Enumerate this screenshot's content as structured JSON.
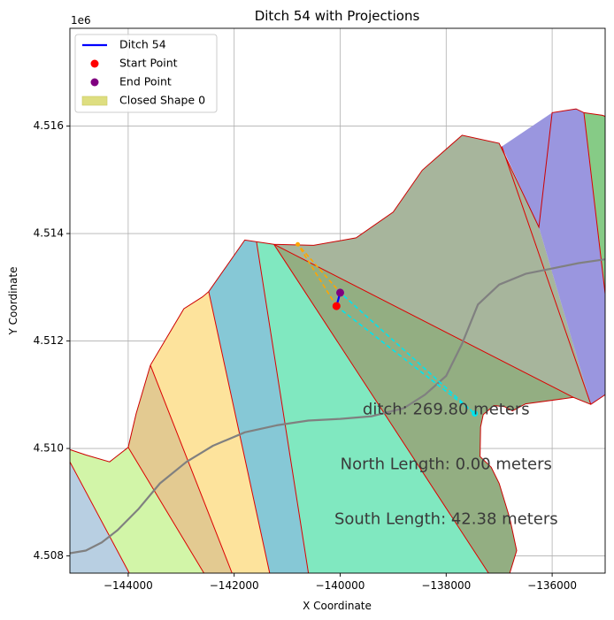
{
  "chart_data": {
    "type": "map-plot",
    "title": "Ditch 54 with Projections",
    "xlabel": "X Coordinate",
    "ylabel": "Y Coordinate",
    "y_offset_label": "1e6",
    "xlim": [
      -145100,
      -135000
    ],
    "ylim": [
      4.50768,
      4.51782
    ],
    "xticks": [
      -144000,
      -142000,
      -140000,
      -138000,
      -136000
    ],
    "xtick_labels": [
      "−144000",
      "−142000",
      "−140000",
      "−138000",
      "−136000"
    ],
    "yticks": [
      4.508,
      4.51,
      4.512,
      4.514,
      4.516
    ],
    "ytick_labels": [
      "4.508",
      "4.510",
      "4.512",
      "4.514",
      "4.516"
    ],
    "grid": true,
    "legend": {
      "placement": "top-left",
      "entries": [
        {
          "label": "Ditch 54",
          "kind": "line",
          "color": "#0000ff"
        },
        {
          "label": "Start Point",
          "kind": "dot",
          "color": "#ff0000"
        },
        {
          "label": "End Point",
          "kind": "dot",
          "color": "#800080"
        },
        {
          "label": "Closed Shape 0",
          "kind": "patch",
          "color": "#dede80"
        }
      ]
    },
    "regions": [
      {
        "name": "region-steelblue",
        "color": "#b8cfe2",
        "points": [
          [
            -145100,
            4.50975
          ],
          [
            -143980,
            4.50768
          ],
          [
            -145100,
            4.50768
          ]
        ]
      },
      {
        "name": "region-lightgreen",
        "color": "#d2f5a8",
        "points": [
          [
            -145100,
            4.50998
          ],
          [
            -144800,
            4.50988
          ],
          [
            -144350,
            4.50975
          ],
          [
            -144000,
            4.51002
          ],
          [
            -142570,
            4.50768
          ],
          [
            -143980,
            4.50768
          ],
          [
            -145100,
            4.50975
          ]
        ]
      },
      {
        "name": "region-tan",
        "color": "#e3ca91",
        "points": [
          [
            -143580,
            4.51155
          ],
          [
            -142040,
            4.50768
          ],
          [
            -142570,
            4.50768
          ],
          [
            -144000,
            4.51002
          ],
          [
            -143850,
            4.51065
          ]
        ]
      },
      {
        "name": "region-gold",
        "color": "#fde39c",
        "points": [
          [
            -142480,
            4.51292
          ],
          [
            -141330,
            4.50768
          ],
          [
            -142040,
            4.50768
          ],
          [
            -143580,
            4.51155
          ],
          [
            -142950,
            4.5126
          ],
          [
            -142600,
            4.51282
          ]
        ]
      },
      {
        "name": "region-teal",
        "color": "#86c8d6",
        "points": [
          [
            -141800,
            4.51388
          ],
          [
            -141580,
            4.51385
          ],
          [
            -140600,
            4.50768
          ],
          [
            -141330,
            4.50768
          ],
          [
            -142480,
            4.51292
          ]
        ]
      },
      {
        "name": "region-aquamarine",
        "color": "#80e8c0",
        "points": [
          [
            -141580,
            4.51385
          ],
          [
            -141250,
            4.5138
          ],
          [
            -137200,
            4.50768
          ],
          [
            -140600,
            4.50768
          ]
        ]
      },
      {
        "name": "region-olivegreen",
        "color": "#93ae82",
        "points": [
          [
            -141250,
            4.5138
          ],
          [
            -135600,
            4.51095
          ],
          [
            -136500,
            4.51083
          ],
          [
            -136750,
            4.5107
          ],
          [
            -136900,
            4.51078
          ],
          [
            -137100,
            4.5108
          ],
          [
            -137300,
            4.51063
          ],
          [
            -137350,
            4.5104
          ],
          [
            -137360,
            4.50985
          ],
          [
            -137150,
            4.50965
          ],
          [
            -137000,
            4.50935
          ],
          [
            -136800,
            4.5087
          ],
          [
            -136670,
            4.5081
          ],
          [
            -136800,
            4.50768
          ],
          [
            -137200,
            4.50768
          ]
        ]
      },
      {
        "name": "region-sage",
        "color": "#a7b59c",
        "points": [
          [
            -141250,
            4.5138
          ],
          [
            -140500,
            4.51378
          ],
          [
            -139700,
            4.51392
          ],
          [
            -139000,
            4.5144
          ],
          [
            -138450,
            4.51518
          ],
          [
            -137700,
            4.51583
          ],
          [
            -137000,
            4.51568
          ],
          [
            -136250,
            4.51412
          ],
          [
            -135270,
            4.51082
          ],
          [
            -135600,
            4.51095
          ]
        ]
      },
      {
        "name": "region-purple",
        "color": "#9a96df",
        "points": [
          [
            -136950,
            4.51562
          ],
          [
            -136000,
            4.51625
          ],
          [
            -135550,
            4.51632
          ],
          [
            -135400,
            4.51625
          ],
          [
            -135000,
            4.51288
          ],
          [
            -135000,
            4.511
          ],
          [
            -135270,
            4.51082
          ],
          [
            -136250,
            4.51412
          ]
        ]
      },
      {
        "name": "region-green",
        "color": "#86cb86",
        "points": [
          [
            -135400,
            4.51625
          ],
          [
            -135050,
            4.5162
          ],
          [
            -135000,
            4.51618
          ],
          [
            -135000,
            4.51288
          ]
        ]
      }
    ],
    "outline": [
      [
        -145100,
        4.50998
      ],
      [
        -144800,
        4.50988
      ],
      [
        -144350,
        4.50975
      ],
      [
        -144000,
        4.51002
      ],
      [
        -143850,
        4.51065
      ],
      [
        -143580,
        4.51155
      ],
      [
        -142950,
        4.5126
      ],
      [
        -142600,
        4.51282
      ],
      [
        -142480,
        4.51292
      ],
      [
        -141800,
        4.51388
      ],
      [
        -141250,
        4.5138
      ],
      [
        -140500,
        4.51378
      ],
      [
        -139700,
        4.51392
      ],
      [
        -139000,
        4.5144
      ],
      [
        -138450,
        4.51518
      ],
      [
        -137700,
        4.51583
      ],
      [
        -137000,
        4.51568
      ],
      [
        -136250,
        4.51412
      ],
      [
        -136000,
        4.51625
      ],
      [
        -135550,
        4.51632
      ],
      [
        -135400,
        4.51625
      ],
      [
        -135050,
        4.5162
      ],
      [
        -135000,
        4.51618
      ]
    ],
    "inner_boundary": [
      [
        -135000,
        4.511
      ],
      [
        -135270,
        4.51082
      ],
      [
        -135600,
        4.51095
      ],
      [
        -136500,
        4.51083
      ],
      [
        -136750,
        4.5107
      ],
      [
        -136900,
        4.51078
      ],
      [
        -137100,
        4.5108
      ],
      [
        -137300,
        4.51063
      ],
      [
        -137350,
        4.5104
      ],
      [
        -137360,
        4.50985
      ],
      [
        -137150,
        4.50965
      ],
      [
        -137000,
        4.50935
      ],
      [
        -136800,
        4.5087
      ],
      [
        -136670,
        4.5081
      ],
      [
        -136800,
        4.50768
      ]
    ],
    "dividers": [
      [
        [
          -145100,
          4.50975
        ],
        [
          -143980,
          4.50768
        ]
      ],
      [
        [
          -144000,
          4.51002
        ],
        [
          -142570,
          4.50768
        ]
      ],
      [
        [
          -143580,
          4.51155
        ],
        [
          -142040,
          4.50768
        ]
      ],
      [
        [
          -142480,
          4.51292
        ],
        [
          -141330,
          4.50768
        ]
      ],
      [
        [
          -141580,
          4.51385
        ],
        [
          -140600,
          4.50768
        ]
      ],
      [
        [
          -141250,
          4.5138
        ],
        [
          -137200,
          4.50768
        ]
      ],
      [
        [
          -141250,
          4.5138
        ],
        [
          -135600,
          4.51095
        ]
      ],
      [
        [
          -136950,
          4.51562
        ],
        [
          -135270,
          4.51082
        ]
      ],
      [
        [
          -135400,
          4.51625
        ],
        [
          -135000,
          4.51288
        ]
      ]
    ],
    "road": [
      [
        -145100,
        4.50805
      ],
      [
        -144800,
        4.5081
      ],
      [
        -144500,
        4.50825
      ],
      [
        -144200,
        4.50848
      ],
      [
        -143800,
        4.50888
      ],
      [
        -143400,
        4.50935
      ],
      [
        -142900,
        4.50975
      ],
      [
        -142400,
        4.51005
      ],
      [
        -141800,
        4.5103
      ],
      [
        -141200,
        4.51043
      ],
      [
        -140600,
        4.51052
      ],
      [
        -140000,
        4.51055
      ],
      [
        -139400,
        4.5106
      ],
      [
        -138800,
        4.51075
      ],
      [
        -138400,
        4.511
      ],
      [
        -138000,
        4.51135
      ],
      [
        -137700,
        4.51195
      ],
      [
        -137400,
        4.51268
      ],
      [
        -137000,
        4.51305
      ],
      [
        -136500,
        4.51325
      ],
      [
        -136000,
        4.51335
      ],
      [
        -135500,
        4.51345
      ],
      [
        -135000,
        4.51352
      ]
    ],
    "ditch": [
      [
        -140070,
        4.51265
      ],
      [
        -140000,
        4.5129
      ]
    ],
    "start_point": [
      -140070,
      4.51265
    ],
    "end_point": [
      -140000,
      4.5129
    ],
    "projection_orange": [
      [
        -140070,
        4.51265
      ],
      [
        -140800,
        4.5138
      ],
      [
        -140000,
        4.5129
      ]
    ],
    "projection_cyan": [
      [
        -140070,
        4.51265
      ],
      [
        -137460,
        4.51065
      ],
      [
        -140000,
        4.5129
      ]
    ],
    "cyan_point": [
      -137460,
      4.51065
    ],
    "annotations": [
      {
        "text": "ditch: 269.80 meters",
        "x": -138000,
        "y": 4.51072
      },
      {
        "text": "North Length: 0.00 meters",
        "x": -138000,
        "y": 4.5097
      },
      {
        "text": "South Length: 42.38 meters",
        "x": -138000,
        "y": 4.50868
      }
    ]
  }
}
